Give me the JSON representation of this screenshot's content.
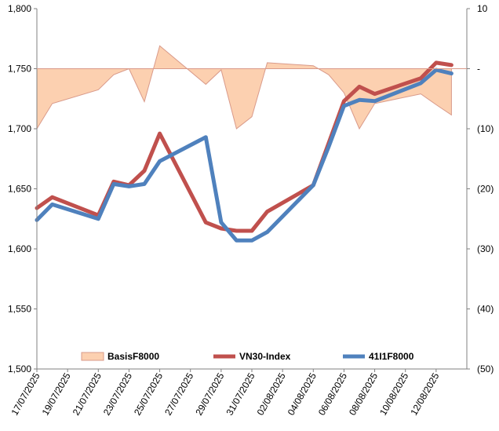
{
  "chart_data": {
    "type": "line",
    "x": [
      "17/07/2025",
      "18/07/2025",
      "21/07/2025",
      "22/07/2025",
      "23/07/2025",
      "24/07/2025",
      "25/07/2025",
      "28/07/2025",
      "29/07/2025",
      "30/07/2025",
      "31/07/2025",
      "01/08/2025",
      "04/08/2025",
      "05/08/2025",
      "06/08/2025",
      "07/08/2025",
      "08/08/2025",
      "11/08/2025",
      "12/08/2025",
      "13/08/2025"
    ],
    "x_tick_labels": [
      "17/07/2025",
      "19/07/2025",
      "21/07/2025",
      "23/07/2025",
      "25/07/2025",
      "27/07/2025",
      "29/07/2025",
      "31/07/2025",
      "02/08/2025",
      "04/08/2025",
      "06/08/2025",
      "08/08/2025",
      "10/08/2025",
      "12/08/2025"
    ],
    "y_left": {
      "ylim": [
        1500,
        1800
      ],
      "ticks": [
        1500,
        1550,
        1600,
        1650,
        1700,
        1750,
        1800
      ],
      "tick_labels": [
        "1,500",
        "1,550",
        "1,600",
        "1,650",
        "1,700",
        "1,750",
        "1,800"
      ]
    },
    "y_right": {
      "ylim": [
        -50,
        10
      ],
      "ticks": [
        10,
        0,
        -10,
        -20,
        -30,
        -40,
        -50
      ],
      "tick_labels": [
        "10",
        "-",
        "(10)",
        "(20)",
        "(30)",
        "(40)",
        "(50)"
      ]
    },
    "series": [
      {
        "name": "BasisF8000",
        "type": "area",
        "axis": "right",
        "x": [
          "17/07/2025",
          "18/07/2025",
          "21/07/2025",
          "22/07/2025",
          "23/07/2025",
          "24/07/2025",
          "25/07/2025",
          "28/07/2025",
          "29/07/2025",
          "30/07/2025",
          "31/07/2025",
          "01/08/2025",
          "04/08/2025",
          "05/08/2025",
          "06/08/2025",
          "07/08/2025",
          "08/08/2025",
          "11/08/2025",
          "12/08/2025",
          "13/08/2025"
        ],
        "values": [
          -10,
          -5.8,
          -3.5,
          -1,
          0,
          -5.5,
          3.8,
          -2.6,
          -0.2,
          -10,
          -8,
          1,
          0.5,
          -1,
          -4,
          -10,
          -5.8,
          -4.2,
          -6,
          -7.7
        ]
      },
      {
        "name": "VN30-Index",
        "type": "line",
        "axis": "left",
        "x": [
          "17/07/2025",
          "18/07/2025",
          "21/07/2025",
          "22/07/2025",
          "23/07/2025",
          "24/07/2025",
          "25/07/2025",
          "28/07/2025",
          "29/07/2025",
          "30/07/2025",
          "31/07/2025",
          "01/08/2025",
          "04/08/2025",
          "05/08/2025",
          "06/08/2025",
          "07/08/2025",
          "08/08/2025",
          "11/08/2025",
          "12/08/2025",
          "13/08/2025"
        ],
        "values": [
          1634,
          1643,
          1628,
          1656,
          1653,
          1665,
          1696,
          1622,
          1617,
          1615,
          1615,
          1631,
          1653,
          1688,
          1723,
          1735,
          1729,
          1742,
          1755,
          1753
        ]
      },
      {
        "name": "41I1F8000",
        "type": "line",
        "axis": "left",
        "x": [
          "17/07/2025",
          "18/07/2025",
          "21/07/2025",
          "22/07/2025",
          "23/07/2025",
          "24/07/2025",
          "25/07/2025",
          "28/07/2025",
          "29/07/2025",
          "30/07/2025",
          "31/07/2025",
          "01/08/2025",
          "04/08/2025",
          "05/08/2025",
          "06/08/2025",
          "07/08/2025",
          "08/08/2025",
          "11/08/2025",
          "12/08/2025",
          "13/08/2025"
        ],
        "values": [
          1624,
          1637,
          1625,
          1654,
          1652,
          1654,
          1673,
          1693,
          1622,
          1607,
          1607,
          1614,
          1653,
          1685,
          1719,
          1724,
          1723,
          1738,
          1749,
          1746
        ]
      }
    ],
    "colors": {
      "BasisF8000_fill": "#fcd0b0",
      "BasisF8000_stroke": "#d99a8a",
      "VN30-Index": "#c0504d",
      "41I1F8000": "#4f81bd"
    },
    "legend": {
      "placement": "bottom-inside"
    },
    "grid": false
  }
}
